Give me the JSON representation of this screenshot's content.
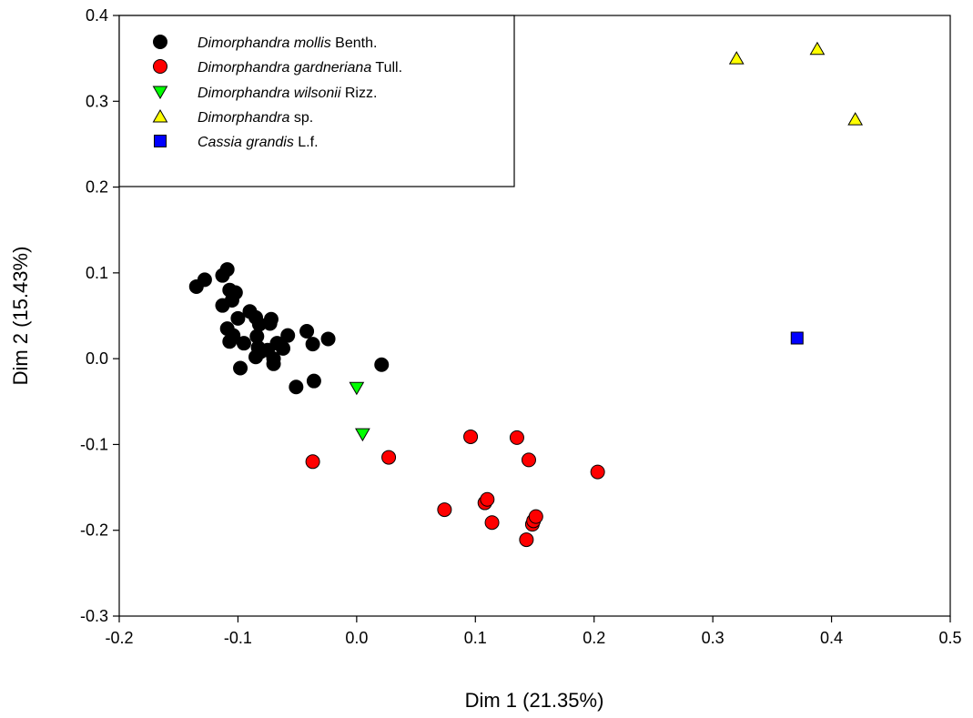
{
  "chart_data": {
    "type": "scatter",
    "title": "",
    "xlabel": "Dim 1 (21.35%)",
    "ylabel": "Dim 2 (15.43%)",
    "xlim": [
      -0.2,
      0.5
    ],
    "ylim": [
      -0.3,
      0.4
    ],
    "xticks": [
      "-0.2",
      "-0.1",
      "0.0",
      "0.1",
      "0.2",
      "0.3",
      "0.4",
      "0.5"
    ],
    "yticks": [
      "-0.3",
      "-0.2",
      "-0.1",
      "0.0",
      "0.1",
      "0.2",
      "0.3",
      "0.4"
    ],
    "grid": false,
    "legend_position": "top-left",
    "series": [
      {
        "name_italic": "Dimorphandra mollis",
        "name_rest": "Benth.",
        "marker": "circle",
        "color": "#000000",
        "points": [
          [
            -0.135,
            0.084
          ],
          [
            -0.128,
            0.092
          ],
          [
            -0.113,
            0.097
          ],
          [
            -0.109,
            0.104
          ],
          [
            -0.113,
            0.062
          ],
          [
            -0.107,
            0.08
          ],
          [
            -0.102,
            0.077
          ],
          [
            -0.105,
            0.068
          ],
          [
            -0.109,
            0.035
          ],
          [
            -0.107,
            0.02
          ],
          [
            -0.104,
            0.027
          ],
          [
            -0.1,
            0.047
          ],
          [
            -0.095,
            0.018
          ],
          [
            -0.098,
            -0.011
          ],
          [
            -0.09,
            0.055
          ],
          [
            -0.085,
            0.048
          ],
          [
            -0.082,
            0.04
          ],
          [
            -0.084,
            0.026
          ],
          [
            -0.083,
            0.013
          ],
          [
            -0.081,
            0.008
          ],
          [
            -0.085,
            0.002
          ],
          [
            -0.075,
            0.01
          ],
          [
            -0.072,
            0.046
          ],
          [
            -0.073,
            0.041
          ],
          [
            -0.07,
            0.0
          ],
          [
            -0.07,
            -0.006
          ],
          [
            -0.067,
            0.018
          ],
          [
            -0.062,
            0.012
          ],
          [
            -0.058,
            0.027
          ],
          [
            -0.051,
            -0.033
          ],
          [
            -0.042,
            0.032
          ],
          [
            -0.037,
            0.017
          ],
          [
            -0.036,
            -0.026
          ],
          [
            -0.024,
            0.023
          ],
          [
            0.021,
            -0.007
          ]
        ]
      },
      {
        "name_italic": "Dimorphandra gardneriana",
        "name_rest": "Tull.",
        "marker": "circle",
        "color": "#ff0000",
        "points": [
          [
            -0.037,
            -0.12
          ],
          [
            0.027,
            -0.115
          ],
          [
            0.074,
            -0.176
          ],
          [
            0.096,
            -0.091
          ],
          [
            0.108,
            -0.168
          ],
          [
            0.11,
            -0.164
          ],
          [
            0.114,
            -0.191
          ],
          [
            0.135,
            -0.092
          ],
          [
            0.145,
            -0.118
          ],
          [
            0.143,
            -0.211
          ],
          [
            0.148,
            -0.193
          ],
          [
            0.149,
            -0.189
          ],
          [
            0.151,
            -0.184
          ],
          [
            0.203,
            -0.132
          ]
        ]
      },
      {
        "name_italic": "Dimorphandra wilsonii",
        "name_rest": "Rizz.",
        "marker": "triangle-down",
        "color": "#00ff00",
        "points": [
          [
            0.0,
            -0.034
          ],
          [
            0.005,
            -0.088
          ]
        ]
      },
      {
        "name_italic": "Dimorphandra",
        "name_rest": "sp.",
        "marker": "triangle-up",
        "color": "#ffff00",
        "points": [
          [
            0.32,
            0.35
          ],
          [
            0.388,
            0.361
          ],
          [
            0.42,
            0.279
          ]
        ]
      },
      {
        "name_italic": "Cassia grandis",
        "name_rest": "L.f.",
        "marker": "square",
        "color": "#0000ff",
        "points": [
          [
            0.371,
            0.024
          ]
        ]
      }
    ]
  }
}
